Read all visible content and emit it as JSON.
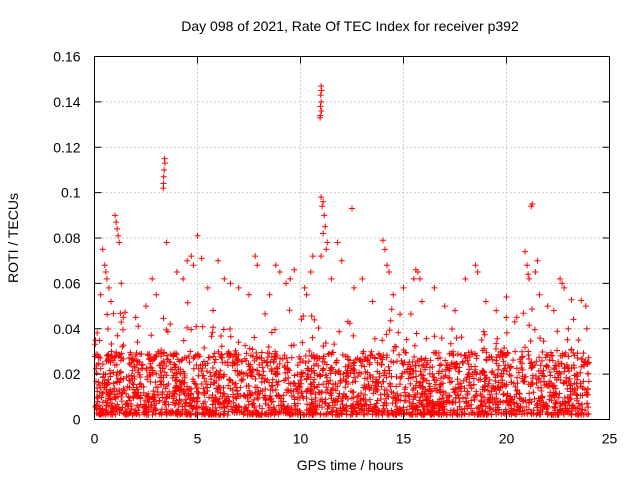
{
  "chart_data": {
    "type": "scatter",
    "title": "Day 098 of 2021, Rate Of TEC Index for receiver p392",
    "xlabel": "GPS time / hours",
    "ylabel": "ROTI / TECUs",
    "xlim": [
      0,
      25
    ],
    "ylim": [
      0,
      0.16
    ],
    "xticks": [
      0,
      5,
      10,
      15,
      20,
      25
    ],
    "yticks": [
      0,
      0.02,
      0.04,
      0.06,
      0.08,
      0.1,
      0.12,
      0.14,
      0.16
    ],
    "xtick_labels": [
      "0",
      "5",
      "10",
      "15",
      "20",
      "25"
    ],
    "ytick_labels": [
      "0",
      "0.02",
      "0.04",
      "0.06",
      "0.08",
      "0.1",
      "0.12",
      "0.14",
      "0.16"
    ],
    "grid": true,
    "marker": "+",
    "point_color": "#ff0000",
    "x_data_range": [
      0,
      24
    ],
    "typical_y_band": [
      0.002,
      0.03
    ],
    "series": [
      {
        "name": "ROTI",
        "points": [
          [
            0.05,
            0.035
          ],
          [
            0.3,
            0.055
          ],
          [
            0.4,
            0.075
          ],
          [
            0.5,
            0.068
          ],
          [
            0.55,
            0.065
          ],
          [
            0.6,
            0.062
          ],
          [
            0.7,
            0.058
          ],
          [
            0.8,
            0.052
          ],
          [
            1.0,
            0.09
          ],
          [
            1.05,
            0.087
          ],
          [
            1.1,
            0.084
          ],
          [
            1.15,
            0.081
          ],
          [
            1.2,
            0.078
          ],
          [
            1.3,
            0.06
          ],
          [
            1.4,
            0.045
          ],
          [
            2.0,
            0.045
          ],
          [
            2.5,
            0.05
          ],
          [
            2.8,
            0.062
          ],
          [
            3.0,
            0.055
          ],
          [
            3.4,
            0.115
          ],
          [
            3.42,
            0.113
          ],
          [
            3.38,
            0.11
          ],
          [
            3.36,
            0.107
          ],
          [
            3.35,
            0.104
          ],
          [
            3.34,
            0.102
          ],
          [
            3.5,
            0.078
          ],
          [
            4.0,
            0.065
          ],
          [
            4.3,
            0.062
          ],
          [
            4.5,
            0.07
          ],
          [
            4.7,
            0.072
          ],
          [
            4.8,
            0.068
          ],
          [
            5.0,
            0.081
          ],
          [
            5.2,
            0.071
          ],
          [
            5.5,
            0.058
          ],
          [
            6.0,
            0.07
          ],
          [
            6.3,
            0.062
          ],
          [
            6.6,
            0.06
          ],
          [
            7.0,
            0.058
          ],
          [
            7.5,
            0.055
          ],
          [
            7.8,
            0.072
          ],
          [
            7.9,
            0.068
          ],
          [
            8.5,
            0.055
          ],
          [
            8.8,
            0.068
          ],
          [
            9.0,
            0.065
          ],
          [
            9.3,
            0.06
          ],
          [
            9.5,
            0.062
          ],
          [
            9.7,
            0.066
          ],
          [
            10.2,
            0.058
          ],
          [
            10.3,
            0.055
          ],
          [
            10.5,
            0.065
          ],
          [
            10.6,
            0.072
          ],
          [
            11.0,
            0.147
          ],
          [
            11.02,
            0.145
          ],
          [
            10.98,
            0.143
          ],
          [
            11.0,
            0.14
          ],
          [
            10.97,
            0.138
          ],
          [
            11.01,
            0.136
          ],
          [
            10.96,
            0.134
          ],
          [
            10.95,
            0.133
          ],
          [
            11.0,
            0.098
          ],
          [
            11.1,
            0.096
          ],
          [
            11.05,
            0.094
          ],
          [
            11.15,
            0.09
          ],
          [
            11.2,
            0.085
          ],
          [
            11.1,
            0.082
          ],
          [
            11.3,
            0.078
          ],
          [
            11.25,
            0.075
          ],
          [
            11.0,
            0.072
          ],
          [
            11.5,
            0.062
          ],
          [
            11.8,
            0.078
          ],
          [
            12.0,
            0.07
          ],
          [
            12.5,
            0.093
          ],
          [
            12.6,
            0.058
          ],
          [
            13.0,
            0.062
          ],
          [
            13.5,
            0.052
          ],
          [
            14.0,
            0.079
          ],
          [
            14.1,
            0.075
          ],
          [
            14.2,
            0.068
          ],
          [
            14.3,
            0.065
          ],
          [
            14.5,
            0.055
          ],
          [
            15.0,
            0.058
          ],
          [
            15.5,
            0.062
          ],
          [
            15.6,
            0.066
          ],
          [
            15.7,
            0.065
          ],
          [
            15.8,
            0.062
          ],
          [
            15.9,
            0.052
          ],
          [
            16.5,
            0.058
          ],
          [
            17.0,
            0.05
          ],
          [
            17.5,
            0.048
          ],
          [
            18.0,
            0.062
          ],
          [
            18.5,
            0.068
          ],
          [
            18.6,
            0.065
          ],
          [
            19.0,
            0.052
          ],
          [
            19.5,
            0.048
          ],
          [
            20.0,
            0.054
          ],
          [
            20.5,
            0.045
          ],
          [
            20.9,
            0.074
          ],
          [
            21.0,
            0.068
          ],
          [
            21.05,
            0.064
          ],
          [
            21.1,
            0.062
          ],
          [
            21.2,
            0.094
          ],
          [
            21.25,
            0.095
          ],
          [
            21.4,
            0.065
          ],
          [
            21.5,
            0.07
          ],
          [
            21.6,
            0.055
          ],
          [
            22.0,
            0.05
          ],
          [
            22.3,
            0.048
          ],
          [
            22.6,
            0.062
          ],
          [
            22.7,
            0.06
          ],
          [
            22.8,
            0.058
          ],
          [
            23.0,
            0.04
          ],
          [
            23.5,
            0.035
          ],
          [
            23.9,
            0.04
          ]
        ]
      }
    ]
  }
}
